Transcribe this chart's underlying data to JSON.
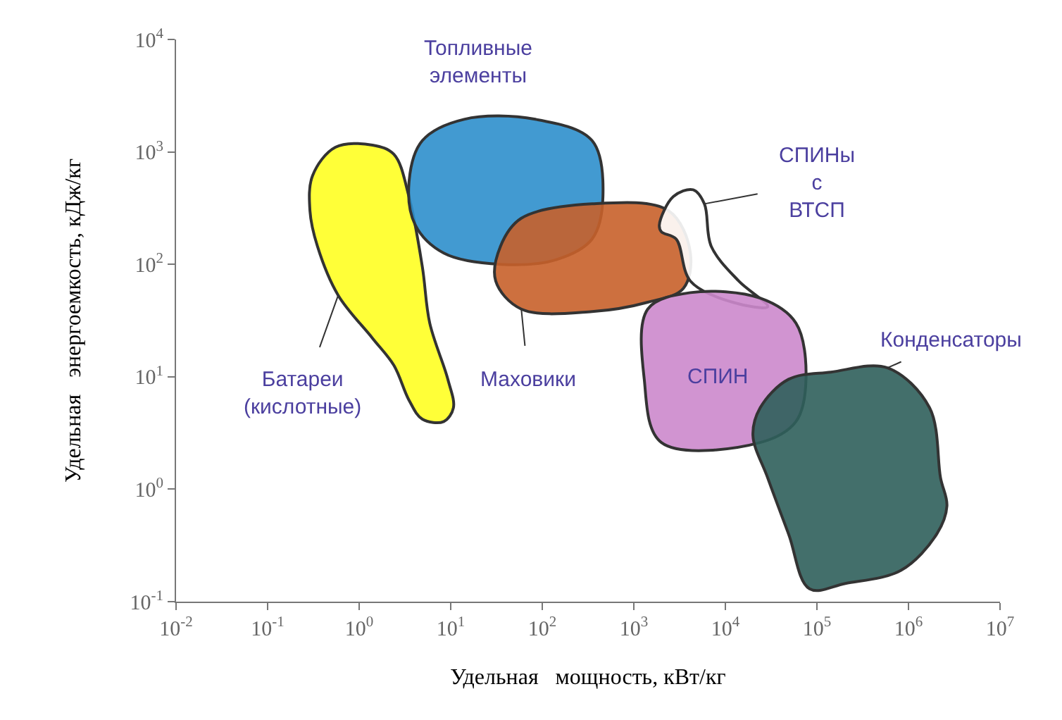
{
  "chart_data": {
    "type": "area",
    "log": "xy",
    "grid": false,
    "xlabel": "Удельная   мощность, кВт/кг",
    "ylabel": "Удельная   энергоемкость, кДж/кг",
    "xlim": [
      0.01,
      10000000
    ],
    "ylim": [
      0.1,
      10000
    ],
    "xticks": [
      {
        "value": 0.01,
        "label": "10$^{-2}$"
      },
      {
        "value": 0.1,
        "label": "10$^{-1}$"
      },
      {
        "value": 1,
        "label": "10$^{0}$"
      },
      {
        "value": 10,
        "label": "10$^{1}$"
      },
      {
        "value": 100,
        "label": "10$^{2}$"
      },
      {
        "value": 1000,
        "label": "10$^{3}$"
      },
      {
        "value": 10000,
        "label": "10$^{4}$"
      },
      {
        "value": 100000,
        "label": "10$^{5}$"
      },
      {
        "value": 1000000,
        "label": "10$^{6}$"
      },
      {
        "value": 10000000,
        "label": "10$^{7}$"
      }
    ],
    "yticks": [
      {
        "value": 0.1,
        "label": "10$^{-1}$"
      },
      {
        "value": 1,
        "label": "10$^{0}$"
      },
      {
        "value": 10,
        "label": "10$^{1}$"
      },
      {
        "value": 100,
        "label": "10$^{2}$"
      },
      {
        "value": 1000,
        "label": "10$^{3}$"
      },
      {
        "value": 10000,
        "label": "10$^{4}$"
      }
    ],
    "series": [
      {
        "name": "Батареи\n(кислотные)",
        "color": "#ffff22",
        "x": [
          0.31,
          0.55,
          1.4,
          2.4,
          3.5,
          4.9,
          5.9,
          9.3,
          10.7,
          8.4,
          4.9,
          3.5,
          2.4,
          1.4,
          0.59,
          0.35,
          0.29
        ],
        "values": [
          616,
          1100,
          1150,
          950,
          400,
          95,
          30,
          9.5,
          5.3,
          4,
          4.2,
          6.2,
          12.6,
          22,
          53,
          145,
          300
        ]
      },
      {
        "name": "Топливные\nэлементы",
        "color": "#2e8fcc",
        "x": [
          3.5,
          4.9,
          14,
          84,
          350,
          460,
          350,
          142,
          35,
          8.4,
          4.1
        ],
        "values": [
          530,
          1260,
          1950,
          1950,
          1260,
          400,
          168,
          110,
          100,
          126,
          224
        ]
      },
      {
        "name": "Маховики",
        "color": "#c8602a",
        "x": [
          35,
          59,
          350,
          2400,
          4150,
          3470,
          1420,
          350,
          59,
          31
        ],
        "values": [
          145,
          257,
          345,
          300,
          126,
          61,
          46,
          38,
          40,
          71
        ]
      },
      {
        "name": "СПИНы\nс\nВТСП",
        "color": "#ffffff",
        "x": [
          1900,
          2700,
          4450,
          5900,
          7000,
          14000,
          29000,
          12000,
          4150,
          2900,
          2000
        ],
        "values": [
          224,
          400,
          460,
          345,
          145,
          71,
          42,
          46,
          71,
          168,
          195
        ]
      },
      {
        "name": "СПИН",
        "color": "#cc88cc",
        "x": [
          1420,
          4150,
          24000,
          59000,
          76000,
          59000,
          24000,
          2000,
          1300
        ],
        "values": [
          40,
          56,
          50,
          30,
          9.5,
          4,
          2.6,
          2.6,
          9.5
        ]
      },
      {
        "name": "Конденсаторы",
        "color": "#2f5f5b",
        "x": [
          24000,
          49000,
          142000,
          590000,
          1700000,
          2240000,
          2630000,
          2040000,
          830000,
          204000,
          83000,
          49000,
          29000,
          20000
        ],
        "values": [
          5.3,
          9.5,
          11,
          12,
          5.3,
          1.26,
          0.71,
          0.4,
          0.19,
          0.145,
          0.13,
          0.4,
          1.26,
          3
        ]
      }
    ]
  }
}
